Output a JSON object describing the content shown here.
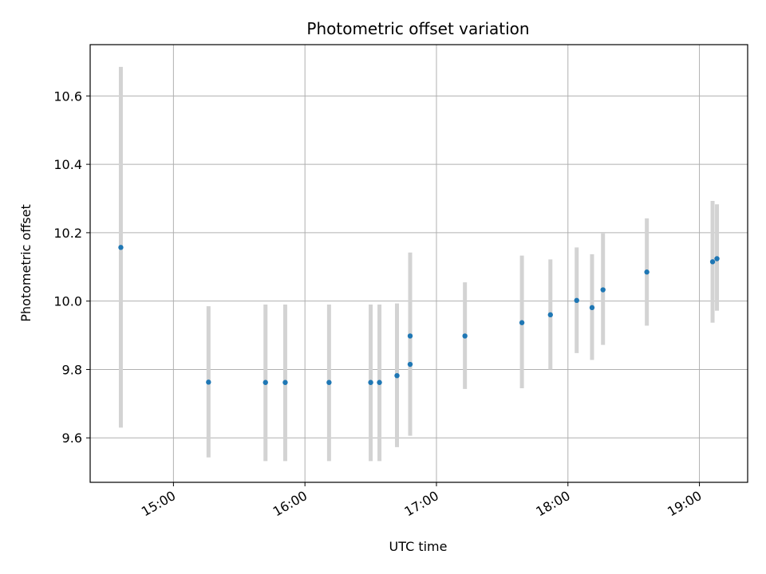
{
  "chart_data": {
    "type": "scatter",
    "title": "Photometric offset variation",
    "xlabel": "UTC time",
    "ylabel": "Photometric offset",
    "x_ticks": [
      "15:00",
      "16:00",
      "17:00",
      "18:00",
      "19:00"
    ],
    "y_ticks": [
      "9.6",
      "9.8",
      "10.0",
      "10.2",
      "10.4",
      "10.6"
    ],
    "y_tick_values": [
      9.6,
      9.8,
      10.0,
      10.2,
      10.4,
      10.6
    ],
    "xlim": [
      "14:22",
      "19:22"
    ],
    "ylim": [
      9.47,
      10.75
    ],
    "grid": true,
    "colors": {
      "point": "#1f77b4",
      "errorbar": "#d3d3d3",
      "grid": "#b0b0b0",
      "axes": "#000000"
    },
    "points": [
      {
        "x": "14:36",
        "y": 10.157,
        "ylow": 9.63,
        "yhigh": 10.685
      },
      {
        "x": "15:16",
        "y": 9.763,
        "ylow": 9.543,
        "yhigh": 9.985
      },
      {
        "x": "15:42",
        "y": 9.762,
        "ylow": 9.532,
        "yhigh": 9.99
      },
      {
        "x": "15:51",
        "y": 9.762,
        "ylow": 9.532,
        "yhigh": 9.99
      },
      {
        "x": "16:11",
        "y": 9.762,
        "ylow": 9.532,
        "yhigh": 9.99
      },
      {
        "x": "16:30",
        "y": 9.762,
        "ylow": 9.532,
        "yhigh": 9.99
      },
      {
        "x": "16:34",
        "y": 9.762,
        "ylow": 9.532,
        "yhigh": 9.99
      },
      {
        "x": "16:42",
        "y": 9.782,
        "ylow": 9.573,
        "yhigh": 9.993
      },
      {
        "x": "16:48",
        "y": 9.815,
        "ylow": 9.652,
        "yhigh": 10.03
      },
      {
        "x": "16:48",
        "y": 9.898,
        "ylow": 9.606,
        "yhigh": 10.142
      },
      {
        "x": "17:13",
        "y": 9.898,
        "ylow": 9.743,
        "yhigh": 10.055
      },
      {
        "x": "17:39",
        "y": 9.937,
        "ylow": 9.745,
        "yhigh": 10.133
      },
      {
        "x": "17:52",
        "y": 9.96,
        "ylow": 9.8,
        "yhigh": 10.122
      },
      {
        "x": "18:04",
        "y": 10.002,
        "ylow": 9.848,
        "yhigh": 10.157
      },
      {
        "x": "18:11",
        "y": 9.981,
        "ylow": 9.828,
        "yhigh": 10.137
      },
      {
        "x": "18:16",
        "y": 10.033,
        "ylow": 9.872,
        "yhigh": 10.198
      },
      {
        "x": "18:36",
        "y": 10.085,
        "ylow": 9.928,
        "yhigh": 10.242
      },
      {
        "x": "19:06",
        "y": 10.115,
        "ylow": 9.937,
        "yhigh": 10.293
      },
      {
        "x": "19:08",
        "y": 10.124,
        "ylow": 9.972,
        "yhigh": 10.283
      }
    ]
  }
}
